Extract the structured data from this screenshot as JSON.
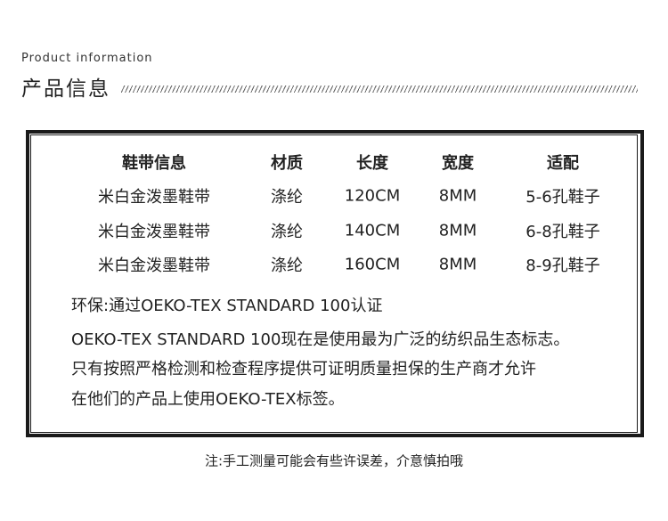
{
  "header": {
    "subtitle": "Product information",
    "title": "产品信息"
  },
  "table": {
    "columns": [
      "鞋带信息",
      "材质",
      "长度",
      "宽度",
      "适配"
    ],
    "rows": [
      [
        "米白金泼墨鞋带",
        "涤纶",
        "120CM",
        "8MM",
        "5-6孔鞋子"
      ],
      [
        "米白金泼墨鞋带",
        "涤纶",
        "140CM",
        "8MM",
        "6-8孔鞋子"
      ],
      [
        "米白金泼墨鞋带",
        "涤纶",
        "160CM",
        "8MM",
        "8-9孔鞋子"
      ]
    ]
  },
  "description": [
    "环保:通过OEKO-TEX STANDARD 100认证",
    "OEKO-TEX STANDARD 100现在是使用最为广泛的纺织品生态标志。",
    "只有按照严格检测和检查程序提供可证明质量担保的生产商才允许",
    "在他们的产品上使用OEKO-TEX标签。"
  ],
  "note": "注:手工测量可能会有些许误差，介意慎拍哦"
}
